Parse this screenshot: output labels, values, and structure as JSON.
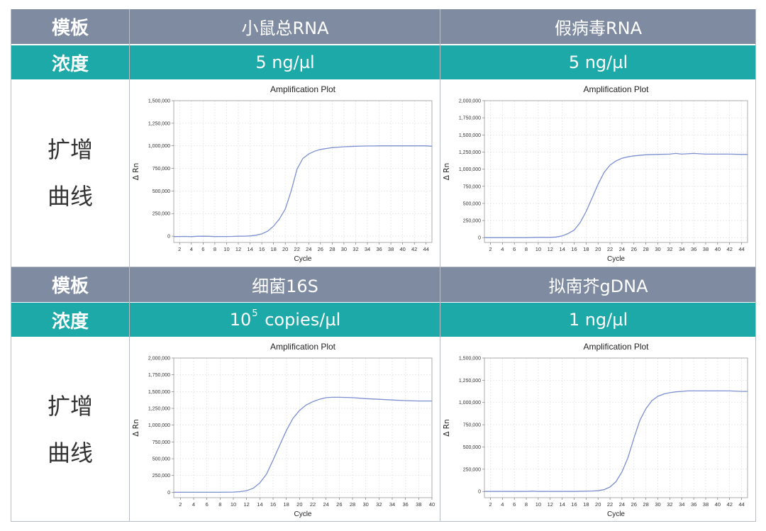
{
  "table": {
    "label_template": "模板",
    "label_concentration": "浓度",
    "label_curve_line1": "扩增",
    "label_curve_line2": "曲线",
    "top": {
      "left_template": "小鼠总RNA",
      "left_concentration": "5 ng/µl",
      "right_template": "假病毒RNA",
      "right_concentration": "5 ng/µl"
    },
    "bottom": {
      "left_template": "细菌16S",
      "left_concentration_base": "10",
      "left_concentration_exp": "5",
      "left_concentration_rest": " copies/µl",
      "right_template": "拟南芥gDNA",
      "right_concentration": "1 ng/µl"
    }
  },
  "colors": {
    "header_bg": "#7f8ba1",
    "concentration_bg": "#1ca9a8",
    "curve": "#7b8fd1",
    "grid": "#dddddd"
  },
  "chart_data": [
    {
      "type": "line",
      "title": "Amplification Plot",
      "xlabel": "Cycle",
      "ylabel": "Δ Rn",
      "xlim": [
        1,
        45
      ],
      "ylim": [
        -70000,
        1500000
      ],
      "xticks": [
        2,
        4,
        6,
        8,
        10,
        12,
        14,
        16,
        18,
        20,
        22,
        24,
        26,
        28,
        30,
        32,
        34,
        36,
        38,
        40,
        42,
        44
      ],
      "yticks": [
        0,
        250000,
        500000,
        750000,
        1000000,
        1250000,
        1500000
      ],
      "ytick_labels": [
        "0",
        "250,000",
        "500,000",
        "750,000",
        "1,000,000",
        "1,250,000",
        "1,500,000"
      ],
      "grid": true,
      "series": [
        {
          "x": [
            1,
            2,
            3,
            4,
            5,
            6,
            7,
            8,
            9,
            10,
            11,
            12,
            13,
            14,
            15,
            16,
            17,
            18,
            19,
            20,
            21,
            22,
            23,
            24,
            25,
            26,
            27,
            28,
            29,
            30,
            31,
            32,
            33,
            34,
            35,
            36,
            38,
            40,
            42,
            44,
            45
          ],
          "y": [
            -5000,
            -4000,
            -3000,
            -6000,
            -2000,
            -1000,
            -2000,
            -5000,
            -4000,
            -4000,
            -3000,
            -1000,
            0,
            2000,
            10000,
            25000,
            55000,
            110000,
            190000,
            300000,
            500000,
            740000,
            860000,
            910000,
            940000,
            960000,
            970000,
            980000,
            985000,
            990000,
            992000,
            995000,
            997000,
            998000,
            998000,
            1000000,
            1000000,
            1000000,
            1000000,
            1000000,
            995000
          ]
        }
      ]
    },
    {
      "type": "line",
      "title": "Amplification Plot",
      "xlabel": "Cycle",
      "ylabel": "Δ Rn",
      "xlim": [
        1,
        45
      ],
      "ylim": [
        -70000,
        2000000
      ],
      "xticks": [
        2,
        4,
        6,
        8,
        10,
        12,
        14,
        16,
        18,
        20,
        22,
        24,
        26,
        28,
        30,
        32,
        34,
        36,
        38,
        40,
        42,
        44
      ],
      "yticks": [
        0,
        250000,
        500000,
        750000,
        1000000,
        1250000,
        1500000,
        1750000,
        2000000
      ],
      "ytick_labels": [
        "0",
        "250,000",
        "500,000",
        "750,000",
        "1,000,000",
        "1,250,000",
        "1,500,000",
        "1,750,000",
        "2,000,000"
      ],
      "grid": true,
      "series": [
        {
          "x": [
            1,
            2,
            4,
            6,
            8,
            10,
            12,
            13,
            14,
            15,
            16,
            17,
            18,
            19,
            20,
            21,
            22,
            23,
            24,
            25,
            26,
            28,
            30,
            32,
            33,
            34,
            35,
            36,
            38,
            40,
            42,
            44,
            45
          ],
          "y": [
            0,
            0,
            0,
            0,
            0,
            5000,
            5000,
            10000,
            25000,
            60000,
            110000,
            220000,
            380000,
            580000,
            780000,
            950000,
            1060000,
            1120000,
            1160000,
            1180000,
            1195000,
            1210000,
            1215000,
            1220000,
            1230000,
            1220000,
            1225000,
            1230000,
            1220000,
            1220000,
            1220000,
            1215000,
            1215000
          ]
        }
      ]
    },
    {
      "type": "line",
      "title": "Amplification Plot",
      "xlabel": "Cycle",
      "ylabel": "Δ Rn",
      "xlim": [
        1,
        40
      ],
      "ylim": [
        -80000,
        2000000
      ],
      "xticks": [
        2,
        4,
        6,
        8,
        10,
        12,
        14,
        16,
        18,
        20,
        22,
        24,
        26,
        28,
        30,
        32,
        34,
        36,
        38,
        40
      ],
      "yticks": [
        0,
        250000,
        500000,
        750000,
        1000000,
        1250000,
        1500000,
        1750000,
        2000000
      ],
      "ytick_labels": [
        "0",
        "250,000",
        "500,000",
        "750,000",
        "1,000,000",
        "1,250,000",
        "1,500,000",
        "1,750,000",
        "2,000,000"
      ],
      "grid": true,
      "series": [
        {
          "x": [
            1,
            2,
            4,
            6,
            8,
            10,
            11,
            12,
            13,
            14,
            15,
            16,
            17,
            18,
            19,
            20,
            21,
            22,
            23,
            24,
            25,
            26,
            28,
            30,
            32,
            34,
            36,
            38,
            40
          ],
          "y": [
            0,
            0,
            0,
            0,
            0,
            3000,
            10000,
            25000,
            60000,
            140000,
            270000,
            480000,
            700000,
            920000,
            1100000,
            1220000,
            1300000,
            1350000,
            1385000,
            1410000,
            1415000,
            1415000,
            1410000,
            1395000,
            1385000,
            1375000,
            1365000,
            1360000,
            1360000
          ]
        }
      ]
    },
    {
      "type": "line",
      "title": "Amplification Plot",
      "xlabel": "Cycle",
      "ylabel": "Δ Rn",
      "xlim": [
        1,
        45
      ],
      "ylim": [
        -70000,
        1500000
      ],
      "xticks": [
        2,
        4,
        6,
        8,
        10,
        12,
        14,
        16,
        18,
        20,
        22,
        24,
        26,
        28,
        30,
        32,
        34,
        36,
        38,
        40,
        42,
        44
      ],
      "yticks": [
        0,
        250000,
        500000,
        750000,
        1000000,
        1250000,
        1500000
      ],
      "ytick_labels": [
        "0",
        "250,000",
        "500,000",
        "750,000",
        "1,000,000",
        "1,250,000",
        "1,500,000"
      ],
      "grid": true,
      "series": [
        {
          "x": [
            1,
            2,
            4,
            6,
            8,
            9,
            10,
            12,
            14,
            16,
            18,
            19,
            20,
            21,
            22,
            23,
            24,
            25,
            26,
            27,
            28,
            29,
            30,
            31,
            32,
            33,
            34,
            35,
            36,
            38,
            40,
            42,
            44,
            45
          ],
          "y": [
            0,
            0,
            0,
            0,
            0,
            3000,
            0,
            0,
            0,
            0,
            3000,
            5000,
            8000,
            20000,
            50000,
            110000,
            220000,
            380000,
            600000,
            800000,
            930000,
            1020000,
            1070000,
            1095000,
            1110000,
            1120000,
            1125000,
            1130000,
            1130000,
            1130000,
            1130000,
            1130000,
            1125000,
            1125000
          ]
        }
      ]
    }
  ]
}
